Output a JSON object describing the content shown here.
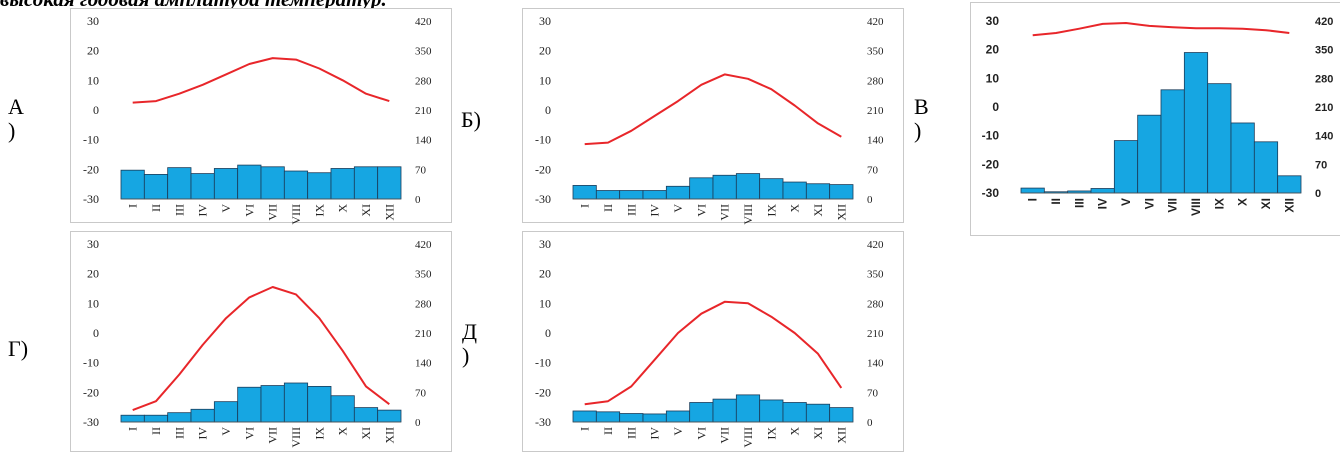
{
  "heading": "высокая годовая амплитуда температур.",
  "months": [
    "I",
    "II",
    "III",
    "IV",
    "V",
    "VI",
    "VII",
    "VIII",
    "IX",
    "X",
    "XI",
    "XII"
  ],
  "colors": {
    "line": "#e8262a",
    "bar": "#16a6e2",
    "bar_stroke": "#1a3c5a",
    "frame": "#c9c9c9"
  },
  "panels": [
    {
      "letter": "А\n)",
      "variant": "serif"
    },
    {
      "letter": "Б)",
      "variant": "serif"
    },
    {
      "letter": "В\n)",
      "variant": "bold"
    },
    {
      "letter": "Г)",
      "variant": "serif"
    },
    {
      "letter": "Д\n)",
      "variant": "serif"
    }
  ],
  "chart_data": [
    {
      "type": "bar+line",
      "title": "А)",
      "categories": [
        "I",
        "II",
        "III",
        "IV",
        "V",
        "VI",
        "VII",
        "VIII",
        "IX",
        "X",
        "XI",
        "XII"
      ],
      "temperature": [
        2.5,
        3,
        5.5,
        8.5,
        12,
        15.5,
        17.5,
        17,
        14,
        10,
        5.5,
        3
      ],
      "precipitation": [
        68,
        58,
        74,
        60,
        72,
        80,
        76,
        66,
        62,
        72,
        76,
        76
      ],
      "ylim_left": [
        -30,
        30
      ],
      "ylim_right": [
        0,
        420
      ],
      "left_ticks": [
        "30",
        "20",
        "10",
        "0",
        "-10",
        "-20",
        "-30"
      ],
      "right_ticks": [
        "420",
        "350",
        "280",
        "210",
        "140",
        "70",
        "0"
      ]
    },
    {
      "type": "bar+line",
      "title": "Б)",
      "categories": [
        "I",
        "II",
        "III",
        "IV",
        "V",
        "VI",
        "VII",
        "VIII",
        "IX",
        "X",
        "XI",
        "XII"
      ],
      "temperature": [
        -11.5,
        -11,
        -7,
        -2,
        3,
        8.5,
        12,
        10.5,
        7,
        1.5,
        -4.5,
        -9
      ],
      "precipitation": [
        32,
        20,
        20,
        20,
        30,
        50,
        56,
        60,
        48,
        40,
        36,
        34
      ],
      "ylim_left": [
        -30,
        30
      ],
      "ylim_right": [
        0,
        420
      ],
      "left_ticks": [
        "30",
        "20",
        "10",
        "0",
        "-10",
        "-20",
        "-30"
      ],
      "right_ticks": [
        "420",
        "350",
        "280",
        "210",
        "140",
        "70",
        "0"
      ]
    },
    {
      "type": "bar+line",
      "title": "В)",
      "categories": [
        "I",
        "II",
        "III",
        "IV",
        "V",
        "VI",
        "VII",
        "VIII",
        "IX",
        "X",
        "XI",
        "XII"
      ],
      "temperature": [
        25,
        25.8,
        27.3,
        29,
        29.3,
        28.3,
        27.8,
        27.5,
        27.5,
        27.3,
        26.8,
        25.8
      ],
      "precipitation": [
        12,
        3,
        5,
        11,
        128,
        190,
        252,
        343,
        267,
        171,
        125,
        42
      ],
      "ylim_left": [
        -30,
        30
      ],
      "ylim_right": [
        0,
        420
      ],
      "left_ticks": [
        "30",
        "20",
        "10",
        "0",
        "-10",
        "-20",
        "-30"
      ],
      "right_ticks": [
        "420",
        "350",
        "280",
        "210",
        "140",
        "70",
        "0"
      ]
    },
    {
      "type": "bar+line",
      "title": "Г)",
      "categories": [
        "I",
        "II",
        "III",
        "IV",
        "V",
        "VI",
        "VII",
        "VIII",
        "IX",
        "X",
        "XI",
        "XII"
      ],
      "temperature": [
        -26,
        -23,
        -14,
        -4,
        5,
        12,
        15.5,
        13,
        5,
        -6,
        -18,
        -24
      ],
      "precipitation": [
        16,
        16,
        22,
        30,
        48,
        82,
        86,
        92,
        84,
        62,
        34,
        28
      ],
      "ylim_left": [
        -30,
        30
      ],
      "ylim_right": [
        0,
        420
      ],
      "left_ticks": [
        "30",
        "20",
        "10",
        "0",
        "-10",
        "-20",
        "-30"
      ],
      "right_ticks": [
        "420",
        "350",
        "280",
        "210",
        "140",
        "70",
        "0"
      ]
    },
    {
      "type": "bar+line",
      "title": "Д)",
      "categories": [
        "I",
        "II",
        "III",
        "IV",
        "V",
        "VI",
        "VII",
        "VIII",
        "IX",
        "X",
        "XI",
        "XII"
      ],
      "temperature": [
        -24,
        -23,
        -18,
        -9,
        0,
        6.5,
        10.5,
        10,
        5.5,
        0,
        -7,
        -18.5
      ],
      "precipitation": [
        26,
        24,
        20,
        19,
        26,
        46,
        54,
        64,
        52,
        46,
        42,
        34
      ],
      "ylim_left": [
        -30,
        30
      ],
      "ylim_right": [
        0,
        420
      ],
      "left_ticks": [
        "30",
        "20",
        "10",
        "0",
        "-10",
        "-20",
        "-30"
      ],
      "right_ticks": [
        "420",
        "350",
        "280",
        "210",
        "140",
        "70",
        "0"
      ]
    }
  ]
}
